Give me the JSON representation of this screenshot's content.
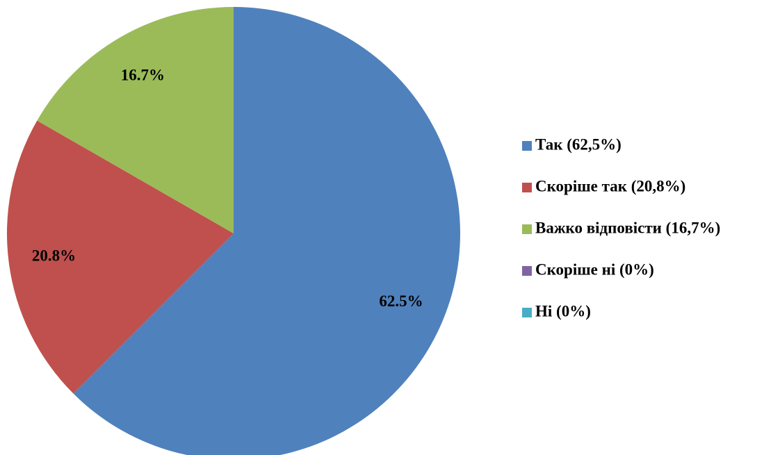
{
  "chart_data": {
    "type": "pie",
    "categories": [
      "Так (62,5%)",
      "Скоріше так (20,8%)",
      "Важко відповісти (16,7%)",
      "Скоріше ні (0%)",
      "Ні (0%)"
    ],
    "values": [
      62.5,
      20.8,
      16.7,
      0,
      0
    ],
    "value_labels": [
      "62.5%",
      "20.8%",
      "16.7%",
      null,
      null
    ],
    "colors": [
      "#4f81bd",
      "#c0504d",
      "#9bbb59",
      "#8064a2",
      "#4bacc6"
    ],
    "legend": "right"
  }
}
